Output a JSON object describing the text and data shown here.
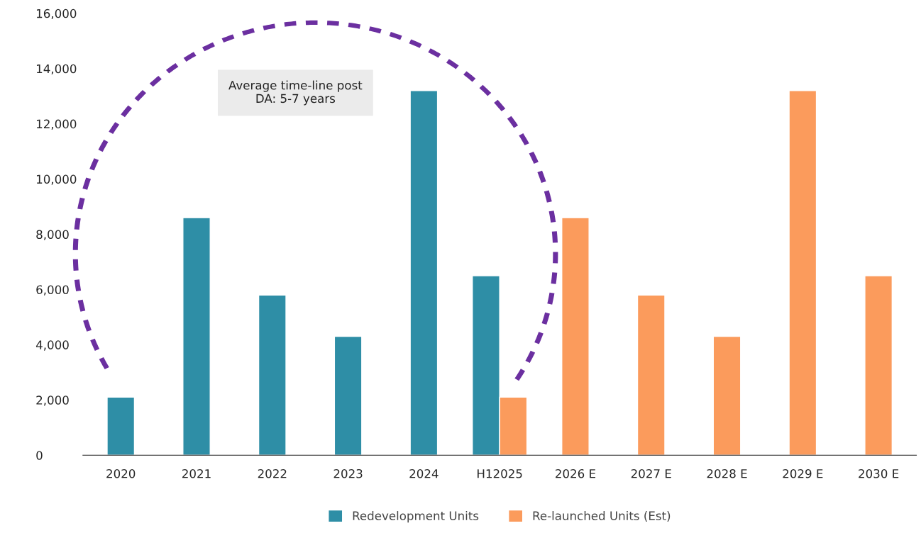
{
  "chart_data": {
    "type": "bar",
    "categories": [
      "2020",
      "2021",
      "2022",
      "2023",
      "2024",
      "H12025",
      "2026 E",
      "2027 E",
      "2028 E",
      "2029 E",
      "2030 E"
    ],
    "series": [
      {
        "name": "Redevelopment Units",
        "color": "#2e8ea6",
        "values": [
          2100,
          8600,
          5800,
          4300,
          13200,
          6500,
          null,
          null,
          null,
          null,
          null
        ]
      },
      {
        "name": "Re-launched Units (Est)",
        "color": "#fb9b5c",
        "values": [
          null,
          null,
          null,
          null,
          null,
          2100,
          8600,
          5800,
          4300,
          13200,
          6500
        ]
      }
    ],
    "ylim": [
      0,
      16000
    ],
    "yticks": [
      {
        "value": 0,
        "label": "0"
      },
      {
        "value": 2000,
        "label": "2,000"
      },
      {
        "value": 4000,
        "label": "4,000"
      },
      {
        "value": 6000,
        "label": "6,000"
      },
      {
        "value": 8000,
        "label": "8,000"
      },
      {
        "value": 10000,
        "label": "10,000"
      },
      {
        "value": 12000,
        "label": "12,000"
      },
      {
        "value": 14000,
        "label": "14,000"
      },
      {
        "value": 16000,
        "label": "16,000"
      }
    ],
    "annotations": [
      "Average time-line post\nDA: 5-7 years"
    ],
    "legend": "bottom",
    "grid": false
  }
}
